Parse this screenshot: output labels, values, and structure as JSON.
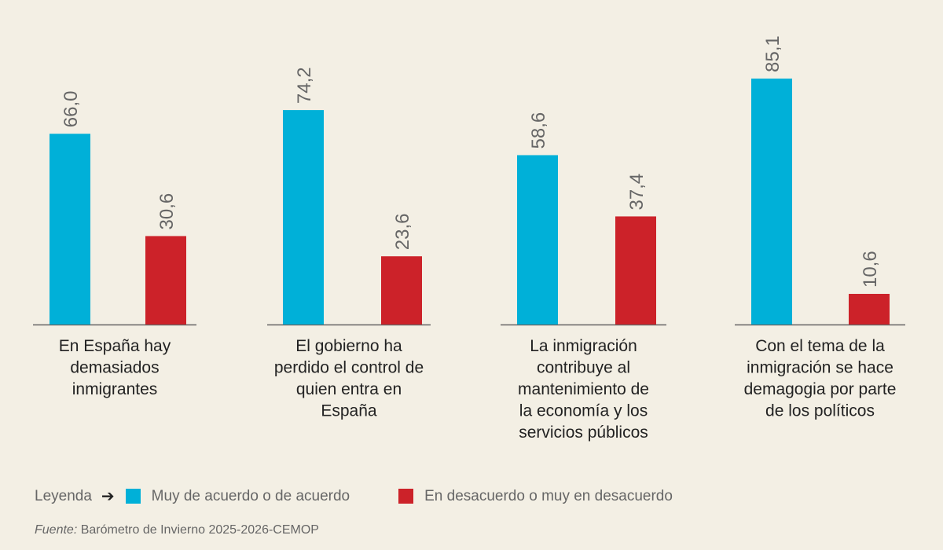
{
  "chart_data": {
    "type": "bar",
    "categories": [
      [
        "En España hay",
        "demasiados",
        "inmigrantes"
      ],
      [
        "El gobierno ha",
        "perdido el control de",
        "quien entra en",
        "España"
      ],
      [
        "La inmigración",
        "contribuye al",
        "mantenimiento de",
        "la economía y los",
        "servicios públicos"
      ],
      [
        "Con el tema de la",
        "inmigración se hace",
        "demagogia por parte",
        "de los políticos"
      ]
    ],
    "series": [
      {
        "name": "Muy de acuerdo o de acuerdo",
        "color": "#00b0d8",
        "values": [
          66.0,
          74.2,
          58.6,
          85.1
        ],
        "labels": [
          "66,0",
          "74,2",
          "58,6",
          "85,1"
        ]
      },
      {
        "name": "En desacuerdo o muy en desacuerdo",
        "color": "#cc2229",
        "values": [
          30.6,
          23.6,
          37.4,
          10.6
        ],
        "labels": [
          "30,6",
          "23,6",
          "37,4",
          "10,6"
        ]
      }
    ],
    "ylim": [
      0,
      85.1
    ],
    "grid": false,
    "legend_position": "bottom-left"
  },
  "legend": {
    "title": "Leyenda",
    "arrow_icon": "arrow-right-icon"
  },
  "source": {
    "label": "Fuente:",
    "text": " Barómetro de Invierno 2025-2026-CEMOP"
  }
}
